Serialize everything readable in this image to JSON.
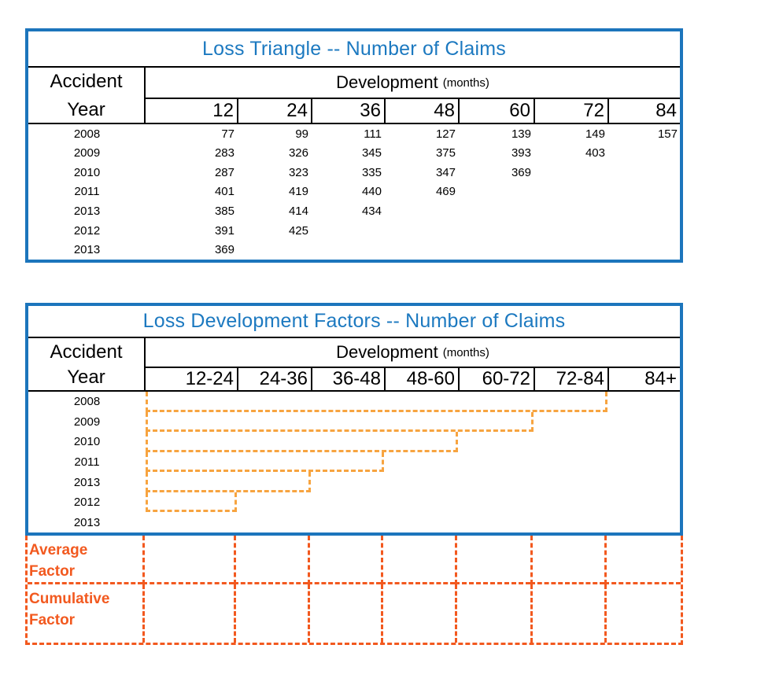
{
  "colors": {
    "table_border_blue": "#1c75bc",
    "title_blue": "#1c79c0",
    "grid_line_black": "#000000",
    "staircase_dash_orange": "#f7a440",
    "factor_dash_orange": "#f2591f",
    "factor_text_orange": "#f2591f"
  },
  "loss_triangle": {
    "title": "Loss Triangle -- Number of Claims",
    "row_header": {
      "line1": "Accident",
      "line2": "Year"
    },
    "col_group": {
      "label": "Development",
      "unit": "(months)"
    },
    "columns": [
      "12",
      "24",
      "36",
      "48",
      "60",
      "72",
      "84"
    ],
    "rows": [
      {
        "year": "2008",
        "values": [
          "77",
          "99",
          "111",
          "127",
          "139",
          "149",
          "157"
        ]
      },
      {
        "year": "2009",
        "values": [
          "283",
          "326",
          "345",
          "375",
          "393",
          "403"
        ]
      },
      {
        "year": "2010",
        "values": [
          "287",
          "323",
          "335",
          "347",
          "369"
        ]
      },
      {
        "year": "2011",
        "values": [
          "401",
          "419",
          "440",
          "469"
        ]
      },
      {
        "year": "2013",
        "values": [
          "385",
          "414",
          "434"
        ]
      },
      {
        "year": "2012",
        "values": [
          "391",
          "425"
        ]
      },
      {
        "year": "2013",
        "values": [
          "369"
        ]
      }
    ]
  },
  "loss_development_factors": {
    "title": "Loss Development Factors -- Number of Claims",
    "row_header": {
      "line1": "Accident",
      "line2": "Year"
    },
    "col_group": {
      "label": "Development",
      "unit": "(months)"
    },
    "columns": [
      "12-24",
      "24-36",
      "36-48",
      "48-60",
      "60-72",
      "72-84",
      "84+"
    ],
    "rows": [
      {
        "year": "2008",
        "dashed_factor_cells": 6
      },
      {
        "year": "2009",
        "dashed_factor_cells": 5
      },
      {
        "year": "2010",
        "dashed_factor_cells": 4
      },
      {
        "year": "2011",
        "dashed_factor_cells": 3
      },
      {
        "year": "2013",
        "dashed_factor_cells": 2
      },
      {
        "year": "2012",
        "dashed_factor_cells": 1
      },
      {
        "year": "2013",
        "dashed_factor_cells": 0
      }
    ]
  },
  "factor_summary": {
    "average": {
      "line1": "Average",
      "line2": "Factor"
    },
    "cumulative": {
      "line1": "Cumulative",
      "line2": "Factor"
    },
    "columns_empty": 7
  }
}
